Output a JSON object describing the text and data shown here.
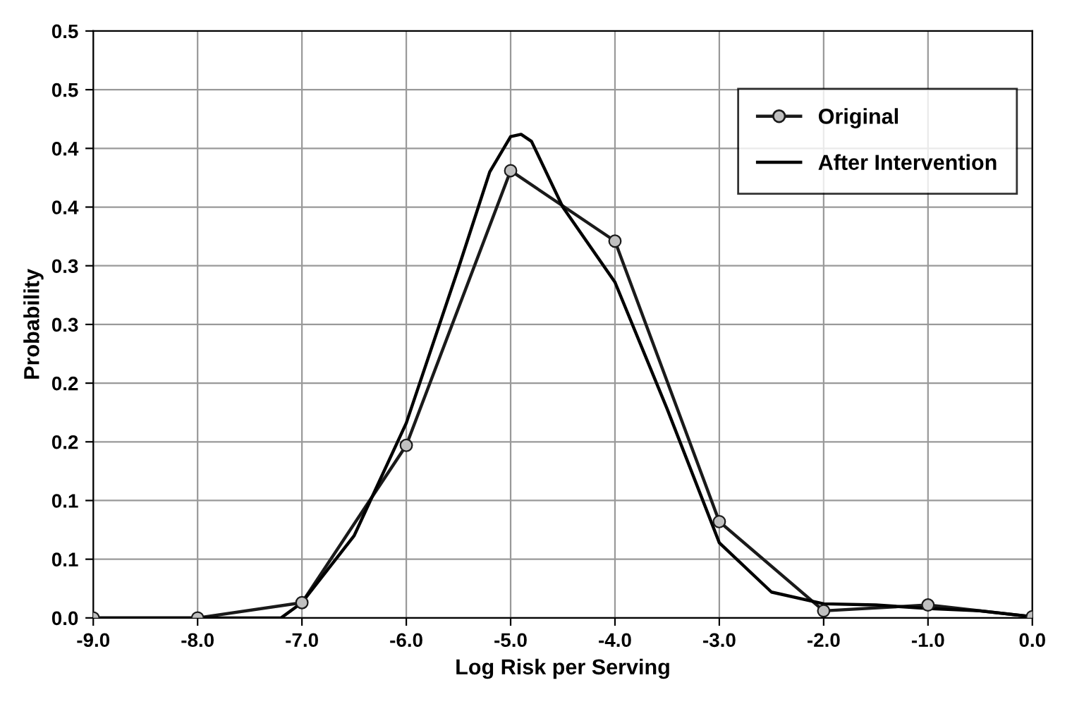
{
  "chart_data": {
    "type": "line",
    "xlabel": "Log Risk per Serving",
    "ylabel": "Probability",
    "xlim": [
      -9,
      0
    ],
    "xticks": [
      {
        "value": -9,
        "label": "-9.0"
      },
      {
        "value": -8,
        "label": "-8.0"
      },
      {
        "value": -7,
        "label": "-7.0"
      },
      {
        "value": -6,
        "label": "-6.0"
      },
      {
        "value": -5,
        "label": "-5.0"
      },
      {
        "value": -4,
        "label": "-4.0"
      },
      {
        "value": -3,
        "label": "-3.0"
      },
      {
        "value": -2,
        "label": "-2.0"
      },
      {
        "value": -1,
        "label": "-1.0"
      },
      {
        "value": 0,
        "label": "0.0"
      }
    ],
    "ylim": [
      0,
      0.5
    ],
    "yticks": [
      {
        "value": 0,
        "label": "0.0"
      },
      {
        "value": 0.05,
        "label": "0.1"
      },
      {
        "value": 0.1,
        "label": "0.1"
      },
      {
        "value": 0.15,
        "label": "0.2"
      },
      {
        "value": 0.2,
        "label": "0.2"
      },
      {
        "value": 0.25,
        "label": "0.3"
      },
      {
        "value": 0.3,
        "label": "0.3"
      },
      {
        "value": 0.35,
        "label": "0.4"
      },
      {
        "value": 0.4,
        "label": "0.4"
      },
      {
        "value": 0.45,
        "label": "0.5"
      },
      {
        "value": 0.5,
        "label": "0.5"
      }
    ],
    "grid": true,
    "legend": "top right",
    "series": [
      {
        "name": "Original",
        "color": "#1a1a1a",
        "marker": "circle",
        "x": [
          -9,
          -8,
          -7,
          -6,
          -5,
          -4,
          -3,
          -2,
          -1,
          0
        ],
        "values": [
          0,
          0,
          0.013,
          0.147,
          0.381,
          0.321,
          0.082,
          0.006,
          0.011,
          0.001
        ]
      },
      {
        "name": "After Intervention",
        "color": "#000000",
        "marker": "none",
        "x": [
          -9,
          -8,
          -7.5,
          -7.2,
          -7,
          -6.5,
          -6,
          -5.5,
          -5.2,
          -5,
          -4.9,
          -4.8,
          -4.5,
          -4,
          -3.5,
          -3,
          -2.5,
          -2,
          -1.5,
          -1,
          -0.5,
          0
        ],
        "values": [
          0,
          0,
          0,
          0,
          0.013,
          0.07,
          0.166,
          0.298,
          0.38,
          0.41,
          0.412,
          0.406,
          0.35,
          0.286,
          0.178,
          0.064,
          0.022,
          0.012,
          0.011,
          0.008,
          0.006,
          0.001
        ]
      }
    ]
  }
}
